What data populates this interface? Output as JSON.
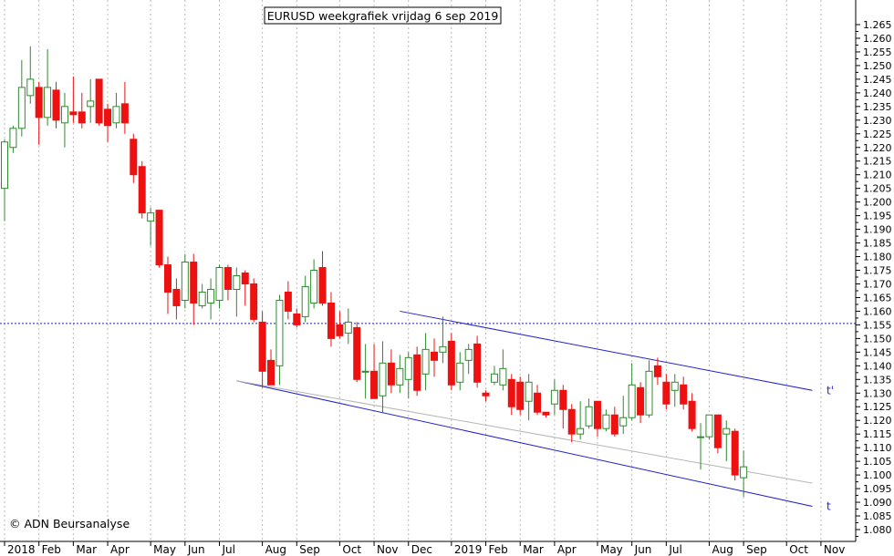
{
  "chart_data": {
    "type": "candlestick",
    "title": "EURUSD weekgrafiek vrijdag 6 sep 2019",
    "watermark": "© ADN Beursanalyse",
    "xlabel": "",
    "ylabel": "",
    "ylim": [
      1.08,
      1.267
    ],
    "y_ticks": [
      1.08,
      1.085,
      1.09,
      1.095,
      1.1,
      1.105,
      1.11,
      1.115,
      1.12,
      1.125,
      1.13,
      1.135,
      1.14,
      1.145,
      1.15,
      1.155,
      1.16,
      1.165,
      1.17,
      1.175,
      1.18,
      1.185,
      1.19,
      1.195,
      1.2,
      1.205,
      1.21,
      1.215,
      1.22,
      1.225,
      1.23,
      1.235,
      1.24,
      1.245,
      1.25,
      1.255,
      1.26,
      1.265
    ],
    "y_axis_position": "right",
    "grid": "vertical dotted at months",
    "x_ticks": [
      {
        "label": "2018",
        "week": 0
      },
      {
        "label": "Feb",
        "week": 4
      },
      {
        "label": "Mar",
        "week": 8
      },
      {
        "label": "Apr",
        "week": 12
      },
      {
        "label": "May",
        "week": 17
      },
      {
        "label": "Jun",
        "week": 21
      },
      {
        "label": "Jul",
        "week": 25
      },
      {
        "label": "Aug",
        "week": 30
      },
      {
        "label": "Sep",
        "week": 34
      },
      {
        "label": "Oct",
        "week": 39
      },
      {
        "label": "Nov",
        "week": 43
      },
      {
        "label": "Dec",
        "week": 47
      },
      {
        "label": "2019",
        "week": 52
      },
      {
        "label": "Feb",
        "week": 56
      },
      {
        "label": "Mar",
        "week": 60
      },
      {
        "label": "Apr",
        "week": 64
      },
      {
        "label": "May",
        "week": 69
      },
      {
        "label": "Jun",
        "week": 73
      },
      {
        "label": "Jul",
        "week": 77
      },
      {
        "label": "Aug",
        "week": 82
      },
      {
        "label": "Sep",
        "week": 86
      },
      {
        "label": "Oct",
        "week": 91
      },
      {
        "label": "Nov",
        "week": 95
      }
    ],
    "x_range_weeks": [
      -0.5,
      98.5
    ],
    "candles": [
      {
        "w": 0,
        "o": 1.205,
        "h": 1.223,
        "l": 1.193,
        "c": 1.222
      },
      {
        "w": 1,
        "o": 1.22,
        "h": 1.228,
        "l": 1.218,
        "c": 1.227
      },
      {
        "w": 2,
        "o": 1.227,
        "h": 1.252,
        "l": 1.224,
        "c": 1.242
      },
      {
        "w": 3,
        "o": 1.239,
        "h": 1.257,
        "l": 1.236,
        "c": 1.245
      },
      {
        "w": 4,
        "o": 1.242,
        "h": 1.244,
        "l": 1.221,
        "c": 1.231
      },
      {
        "w": 5,
        "o": 1.231,
        "h": 1.256,
        "l": 1.228,
        "c": 1.242
      },
      {
        "w": 6,
        "o": 1.241,
        "h": 1.244,
        "l": 1.227,
        "c": 1.23
      },
      {
        "w": 7,
        "o": 1.229,
        "h": 1.24,
        "l": 1.22,
        "c": 1.235
      },
      {
        "w": 8,
        "o": 1.233,
        "h": 1.246,
        "l": 1.229,
        "c": 1.232
      },
      {
        "w": 9,
        "o": 1.233,
        "h": 1.24,
        "l": 1.227,
        "c": 1.229
      },
      {
        "w": 10,
        "o": 1.235,
        "h": 1.245,
        "l": 1.229,
        "c": 1.237
      },
      {
        "w": 11,
        "o": 1.245,
        "h": 1.245,
        "l": 1.228,
        "c": 1.229
      },
      {
        "w": 12,
        "o": 1.234,
        "h": 1.236,
        "l": 1.222,
        "c": 1.228
      },
      {
        "w": 13,
        "o": 1.229,
        "h": 1.24,
        "l": 1.227,
        "c": 1.235
      },
      {
        "w": 14,
        "o": 1.236,
        "h": 1.244,
        "l": 1.225,
        "c": 1.229
      },
      {
        "w": 15,
        "o": 1.223,
        "h": 1.225,
        "l": 1.207,
        "c": 1.21
      },
      {
        "w": 16,
        "o": 1.213,
        "h": 1.215,
        "l": 1.194,
        "c": 1.196
      },
      {
        "w": 17,
        "o": 1.193,
        "h": 1.198,
        "l": 1.184,
        "c": 1.196
      },
      {
        "w": 18,
        "o": 1.197,
        "h": 1.197,
        "l": 1.176,
        "c": 1.177
      },
      {
        "w": 19,
        "o": 1.177,
        "h": 1.18,
        "l": 1.159,
        "c": 1.167
      },
      {
        "w": 20,
        "o": 1.168,
        "h": 1.172,
        "l": 1.157,
        "c": 1.162
      },
      {
        "w": 21,
        "o": 1.164,
        "h": 1.181,
        "l": 1.161,
        "c": 1.178
      },
      {
        "w": 22,
        "o": 1.178,
        "h": 1.181,
        "l": 1.155,
        "c": 1.163
      },
      {
        "w": 23,
        "o": 1.162,
        "h": 1.17,
        "l": 1.161,
        "c": 1.167
      },
      {
        "w": 24,
        "o": 1.163,
        "h": 1.172,
        "l": 1.157,
        "c": 1.168
      },
      {
        "w": 25,
        "o": 1.164,
        "h": 1.177,
        "l": 1.161,
        "c": 1.176
      },
      {
        "w": 26,
        "o": 1.176,
        "h": 1.177,
        "l": 1.164,
        "c": 1.168
      },
      {
        "w": 27,
        "o": 1.168,
        "h": 1.176,
        "l": 1.158,
        "c": 1.173
      },
      {
        "w": 28,
        "o": 1.174,
        "h": 1.175,
        "l": 1.162,
        "c": 1.17
      },
      {
        "w": 29,
        "o": 1.17,
        "h": 1.172,
        "l": 1.156,
        "c": 1.157
      },
      {
        "w": 30,
        "o": 1.156,
        "h": 1.16,
        "l": 1.132,
        "c": 1.138
      },
      {
        "w": 31,
        "o": 1.142,
        "h": 1.146,
        "l": 1.133,
        "c": 1.133
      },
      {
        "w": 32,
        "o": 1.14,
        "h": 1.166,
        "l": 1.133,
        "c": 1.164
      },
      {
        "w": 33,
        "o": 1.167,
        "h": 1.171,
        "l": 1.157,
        "c": 1.16
      },
      {
        "w": 34,
        "o": 1.159,
        "h": 1.161,
        "l": 1.154,
        "c": 1.155
      },
      {
        "w": 35,
        "o": 1.158,
        "h": 1.173,
        "l": 1.156,
        "c": 1.169
      },
      {
        "w": 36,
        "o": 1.163,
        "h": 1.179,
        "l": 1.161,
        "c": 1.175
      },
      {
        "w": 37,
        "o": 1.176,
        "h": 1.182,
        "l": 1.162,
        "c": 1.163
      },
      {
        "w": 38,
        "o": 1.163,
        "h": 1.167,
        "l": 1.147,
        "c": 1.15
      },
      {
        "w": 39,
        "o": 1.155,
        "h": 1.16,
        "l": 1.15,
        "c": 1.151
      },
      {
        "w": 40,
        "o": 1.152,
        "h": 1.161,
        "l": 1.148,
        "c": 1.156
      },
      {
        "w": 41,
        "o": 1.154,
        "h": 1.156,
        "l": 1.134,
        "c": 1.135
      },
      {
        "w": 42,
        "o": 1.138,
        "h": 1.148,
        "l": 1.128,
        "c": 1.138
      },
      {
        "w": 43,
        "o": 1.138,
        "h": 1.148,
        "l": 1.128,
        "c": 1.128
      },
      {
        "w": 44,
        "o": 1.129,
        "h": 1.149,
        "l": 1.123,
        "c": 1.141
      },
      {
        "w": 45,
        "o": 1.141,
        "h": 1.146,
        "l": 1.13,
        "c": 1.133
      },
      {
        "w": 46,
        "o": 1.133,
        "h": 1.144,
        "l": 1.13,
        "c": 1.139
      },
      {
        "w": 47,
        "o": 1.135,
        "h": 1.145,
        "l": 1.128,
        "c": 1.143
      },
      {
        "w": 48,
        "o": 1.144,
        "h": 1.147,
        "l": 1.129,
        "c": 1.131
      },
      {
        "w": 49,
        "o": 1.137,
        "h": 1.152,
        "l": 1.131,
        "c": 1.146
      },
      {
        "w": 50,
        "o": 1.145,
        "h": 1.15,
        "l": 1.136,
        "c": 1.142
      },
      {
        "w": 51,
        "o": 1.145,
        "h": 1.158,
        "l": 1.141,
        "c": 1.147
      },
      {
        "w": 52,
        "o": 1.149,
        "h": 1.152,
        "l": 1.131,
        "c": 1.133
      },
      {
        "w": 53,
        "o": 1.134,
        "h": 1.145,
        "l": 1.131,
        "c": 1.141
      },
      {
        "w": 54,
        "o": 1.142,
        "h": 1.148,
        "l": 1.137,
        "c": 1.146
      },
      {
        "w": 55,
        "o": 1.148,
        "h": 1.151,
        "l": 1.132,
        "c": 1.134
      },
      {
        "w": 56,
        "o": 1.13,
        "h": 1.131,
        "l": 1.127,
        "c": 1.129
      },
      {
        "w": 57,
        "o": 1.134,
        "h": 1.14,
        "l": 1.133,
        "c": 1.137
      },
      {
        "w": 58,
        "o": 1.133,
        "h": 1.146,
        "l": 1.131,
        "c": 1.139
      },
      {
        "w": 59,
        "o": 1.135,
        "h": 1.137,
        "l": 1.122,
        "c": 1.125
      },
      {
        "w": 60,
        "o": 1.134,
        "h": 1.136,
        "l": 1.122,
        "c": 1.124
      },
      {
        "w": 61,
        "o": 1.127,
        "h": 1.137,
        "l": 1.12,
        "c": 1.134
      },
      {
        "w": 62,
        "o": 1.13,
        "h": 1.133,
        "l": 1.122,
        "c": 1.123
      },
      {
        "w": 63,
        "o": 1.123,
        "h": 1.122,
        "l": 1.121,
        "c": 1.122
      },
      {
        "w": 64,
        "o": 1.126,
        "h": 1.135,
        "l": 1.122,
        "c": 1.131
      },
      {
        "w": 65,
        "o": 1.131,
        "h": 1.133,
        "l": 1.117,
        "c": 1.124
      },
      {
        "w": 66,
        "o": 1.124,
        "h": 1.126,
        "l": 1.112,
        "c": 1.115
      },
      {
        "w": 67,
        "o": 1.115,
        "h": 1.127,
        "l": 1.113,
        "c": 1.117
      },
      {
        "w": 68,
        "o": 1.118,
        "h": 1.128,
        "l": 1.117,
        "c": 1.125
      },
      {
        "w": 69,
        "o": 1.127,
        "h": 1.127,
        "l": 1.114,
        "c": 1.117
      },
      {
        "w": 70,
        "o": 1.117,
        "h": 1.124,
        "l": 1.116,
        "c": 1.122
      },
      {
        "w": 71,
        "o": 1.122,
        "h": 1.125,
        "l": 1.114,
        "c": 1.115
      },
      {
        "w": 72,
        "o": 1.118,
        "h": 1.129,
        "l": 1.115,
        "c": 1.121
      },
      {
        "w": 73,
        "o": 1.121,
        "h": 1.141,
        "l": 1.12,
        "c": 1.133
      },
      {
        "w": 74,
        "o": 1.132,
        "h": 1.134,
        "l": 1.119,
        "c": 1.122
      },
      {
        "w": 75,
        "o": 1.122,
        "h": 1.142,
        "l": 1.121,
        "c": 1.138
      },
      {
        "w": 76,
        "o": 1.14,
        "h": 1.143,
        "l": 1.133,
        "c": 1.136
      },
      {
        "w": 77,
        "o": 1.134,
        "h": 1.137,
        "l": 1.124,
        "c": 1.126
      },
      {
        "w": 78,
        "o": 1.131,
        "h": 1.137,
        "l": 1.125,
        "c": 1.134
      },
      {
        "w": 79,
        "o": 1.133,
        "h": 1.136,
        "l": 1.124,
        "c": 1.126
      },
      {
        "w": 80,
        "o": 1.127,
        "h": 1.13,
        "l": 1.116,
        "c": 1.117
      },
      {
        "w": 81,
        "o": 1.114,
        "h": 1.119,
        "l": 1.102,
        "c": 1.114
      },
      {
        "w": 82,
        "o": 1.114,
        "h": 1.121,
        "l": 1.113,
        "c": 1.122
      },
      {
        "w": 83,
        "o": 1.122,
        "h": 1.122,
        "l": 1.108,
        "c": 1.11
      },
      {
        "w": 84,
        "o": 1.115,
        "h": 1.12,
        "l": 1.105,
        "c": 1.117
      },
      {
        "w": 85,
        "o": 1.116,
        "h": 1.117,
        "l": 1.098,
        "c": 1.1
      },
      {
        "w": 86,
        "o": 1.099,
        "h": 1.109,
        "l": 1.092,
        "c": 1.103
      }
    ],
    "horizontal_line": {
      "value": 1.1555,
      "style": "dotted",
      "color": "#1f1fa8"
    },
    "trend_lines": [
      {
        "name": "t'",
        "from": {
          "w": 46,
          "y": 1.16
        },
        "to": {
          "w": 94,
          "y": 1.131
        },
        "color": "#2323c8"
      },
      {
        "name": "t",
        "from": {
          "w": 27,
          "y": 1.1345
        },
        "to": {
          "w": 94,
          "y": 1.0885
        },
        "color": "#2323c8"
      },
      {
        "name": "",
        "from": {
          "w": 27,
          "y": 1.1345
        },
        "to": {
          "w": 94,
          "y": 1.097
        },
        "color": "#b5b5b5"
      }
    ],
    "line_labels": [
      "t'",
      "t"
    ],
    "colors": {
      "up": "#2e8b2e",
      "down": "#ee1111",
      "trend": "#2323c8",
      "horizontal": "#1f1fa8",
      "grid": "#b9b9b9"
    }
  }
}
